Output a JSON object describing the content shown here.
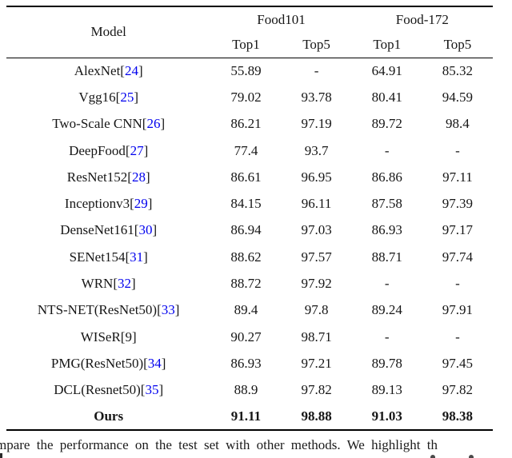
{
  "table": {
    "header": {
      "model_label": "Model",
      "groups": [
        {
          "label": "Food101"
        },
        {
          "label": "Food-172"
        }
      ],
      "subheaders": [
        "Top1",
        "Top5",
        "Top1",
        "Top5"
      ]
    },
    "rows": [
      {
        "name": "AlexNet",
        "ref": "24",
        "ref_link": true,
        "values": [
          "55.89",
          "-",
          "64.91",
          "85.32"
        ],
        "bold": false
      },
      {
        "name": "Vgg16",
        "ref": "25",
        "ref_link": true,
        "values": [
          "79.02",
          "93.78",
          "80.41",
          "94.59"
        ],
        "bold": false
      },
      {
        "name": "Two-Scale CNN",
        "ref": "26",
        "ref_link": true,
        "values": [
          "86.21",
          "97.19",
          "89.72",
          "98.4"
        ],
        "bold": false
      },
      {
        "name": "DeepFood",
        "ref": "27",
        "ref_link": true,
        "values": [
          "77.4",
          "93.7",
          "-",
          "-"
        ],
        "bold": false
      },
      {
        "name": "ResNet152",
        "ref": "28",
        "ref_link": true,
        "values": [
          "86.61",
          "96.95",
          "86.86",
          "97.11"
        ],
        "bold": false
      },
      {
        "name": "Inceptionv3",
        "ref": "29",
        "ref_link": true,
        "values": [
          "84.15",
          "96.11",
          "87.58",
          "97.39"
        ],
        "bold": false
      },
      {
        "name": "DenseNet161",
        "ref": "30",
        "ref_link": true,
        "values": [
          "86.94",
          "97.03",
          "86.93",
          "97.17"
        ],
        "bold": false
      },
      {
        "name": "SENet154",
        "ref": "31",
        "ref_link": true,
        "values": [
          "88.62",
          "97.57",
          "88.71",
          "97.74"
        ],
        "bold": false
      },
      {
        "name": "WRN",
        "ref": "32",
        "ref_link": true,
        "values": [
          "88.72",
          "97.92",
          "-",
          "-"
        ],
        "bold": false
      },
      {
        "name": "NTS-NET(ResNet50)",
        "ref": "33",
        "ref_link": true,
        "values": [
          "89.4",
          "97.8",
          "89.24",
          "97.91"
        ],
        "bold": false
      },
      {
        "name": "WISeR",
        "ref": "9",
        "ref_link": false,
        "values": [
          "90.27",
          "98.71",
          "-",
          "-"
        ],
        "bold": false
      },
      {
        "name": "PMG(ResNet50)",
        "ref": "34",
        "ref_link": true,
        "values": [
          "86.93",
          "97.21",
          "89.78",
          "97.45"
        ],
        "bold": false
      },
      {
        "name": "DCL(Resnet50)",
        "ref": "35",
        "ref_link": true,
        "values": [
          "88.9",
          "97.82",
          "89.13",
          "97.82"
        ],
        "bold": false
      },
      {
        "name": "Ours",
        "ref": null,
        "ref_link": false,
        "values": [
          "91.11",
          "98.88",
          "91.03",
          "98.38"
        ],
        "bold": true
      }
    ]
  },
  "caption": {
    "line1": "mpare the performance on the test set with other methods. We highlight th"
  },
  "colors": {
    "citation_link": "#0000ee",
    "text": "#161616",
    "rule": "#000000"
  }
}
